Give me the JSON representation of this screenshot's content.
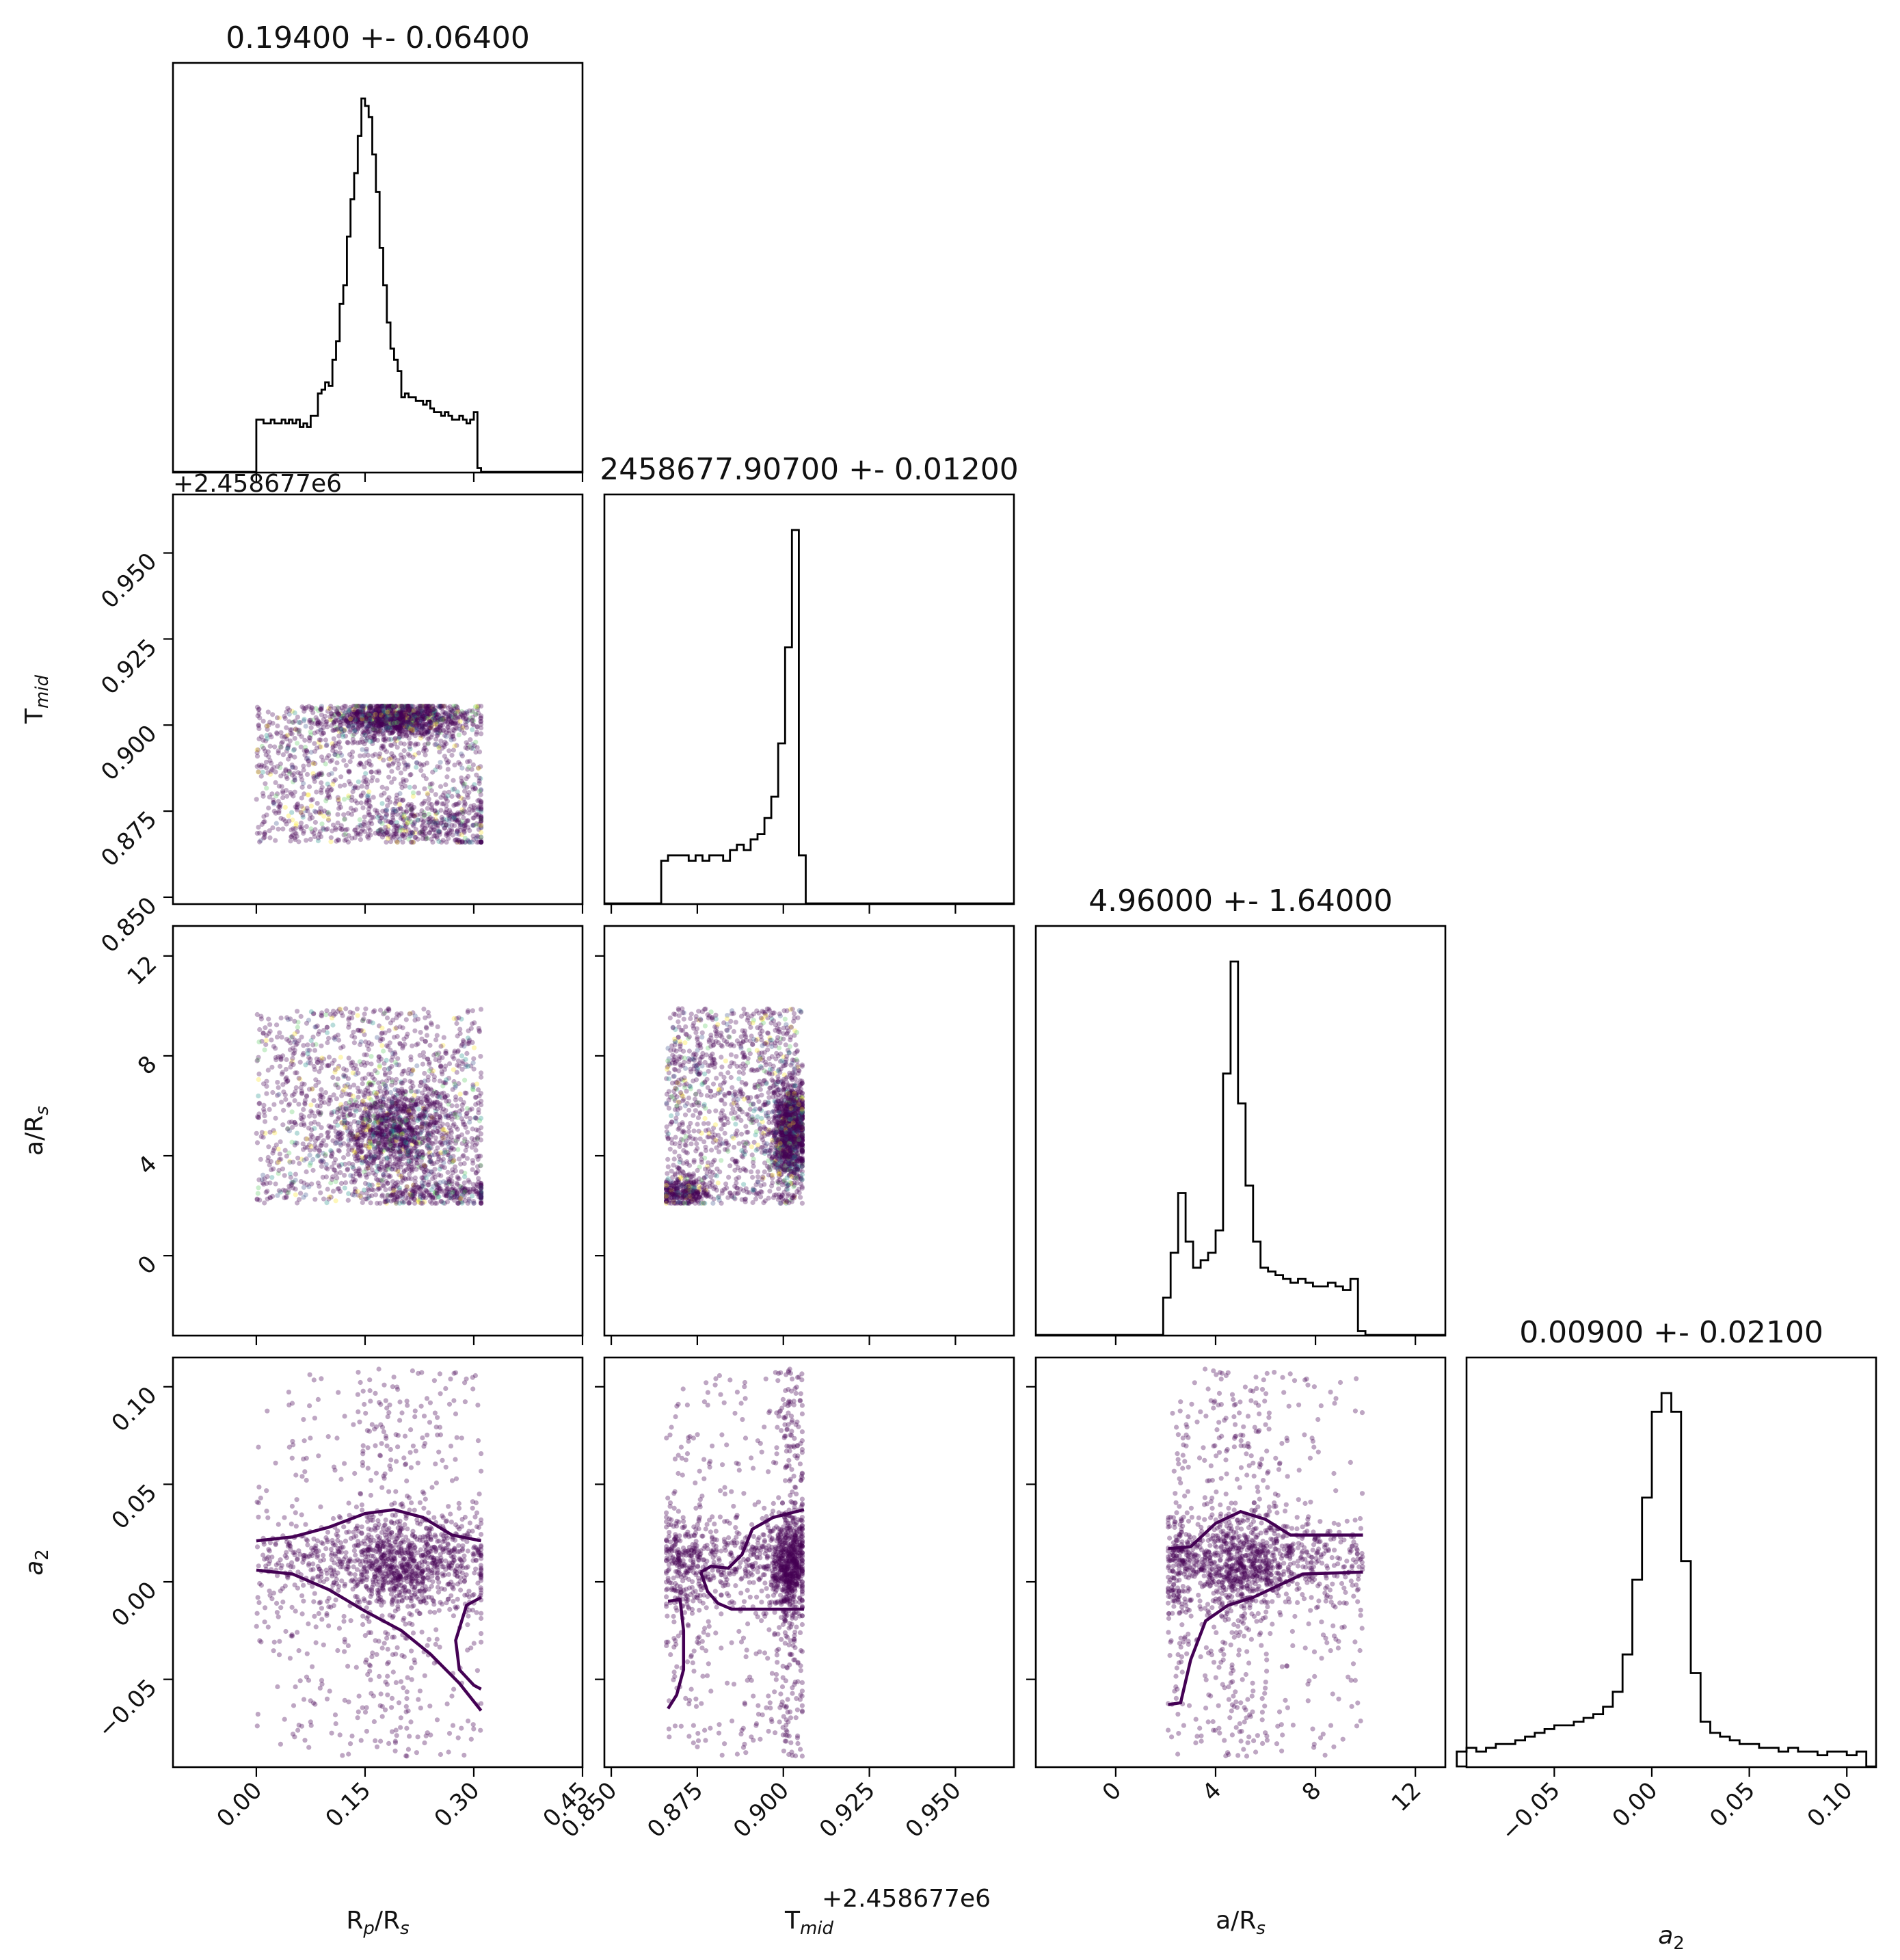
{
  "chart_data": {
    "type": "scatter",
    "kind": "corner",
    "colors": {
      "points": "#440154",
      "scatter_palette": [
        "#440154",
        "#3b528b",
        "#21918c",
        "#5ec962",
        "#fde725"
      ],
      "hist": "#000000",
      "contour": "#440154"
    },
    "parameters": [
      {
        "key": "rp",
        "label": "Rp/Rs",
        "title": "0.19400 +- 0.06400",
        "range": [
          -0.115,
          0.45
        ],
        "ticks": [
          0.0,
          0.15,
          0.3,
          0.45
        ],
        "tick_labels": [
          "0.00",
          "0.15",
          "0.30",
          "0.45"
        ]
      },
      {
        "key": "tmid",
        "label": "Tmid",
        "title": "2458677.90700 +- 0.01200",
        "offset_text": "+2.458677e6",
        "range": [
          0.848,
          0.967
        ],
        "ticks": [
          0.85,
          0.875,
          0.9,
          0.925,
          0.95
        ],
        "tick_labels": [
          "0.850",
          "0.875",
          "0.900",
          "0.925",
          "0.950"
        ]
      },
      {
        "key": "ars",
        "label": "a/Rs",
        "title": "4.96000 +- 1.64000",
        "range": [
          -3.2,
          13.2
        ],
        "ticks": [
          0,
          4,
          8,
          12
        ],
        "tick_labels": [
          "0",
          "4",
          "8",
          "12"
        ]
      },
      {
        "key": "a2",
        "label": "a2",
        "title": "0.00900 +- 0.02100",
        "range": [
          -0.095,
          0.115
        ],
        "ticks": [
          -0.05,
          0.0,
          0.05,
          0.1
        ],
        "tick_labels": [
          "−0.05",
          "0.00",
          "0.05",
          "0.10"
        ]
      }
    ],
    "histograms": {
      "rp": {
        "bins": [
          0.005,
          0.01,
          0.015,
          0.02,
          0.025,
          0.03,
          0.035,
          0.04,
          0.045,
          0.05,
          0.055,
          0.06,
          0.065,
          0.07,
          0.075,
          0.08,
          0.085,
          0.09,
          0.095,
          0.1,
          0.105,
          0.11,
          0.115,
          0.12,
          0.125,
          0.13,
          0.135,
          0.14,
          0.145,
          0.15,
          0.155,
          0.16,
          0.165,
          0.17,
          0.175,
          0.18,
          0.185,
          0.19,
          0.195,
          0.2,
          0.205,
          0.21,
          0.215,
          0.22,
          0.225,
          0.23,
          0.235,
          0.24,
          0.245,
          0.25,
          0.255,
          0.26,
          0.265,
          0.27,
          0.275,
          0.28,
          0.285,
          0.29,
          0.295,
          0.3,
          0.305,
          0.31
        ],
        "counts": [
          14,
          14,
          13,
          13,
          14,
          13,
          13,
          14,
          13,
          14,
          13,
          14,
          12,
          13,
          12,
          15,
          15,
          21,
          22,
          24,
          23,
          30,
          35,
          45,
          50,
          63,
          73,
          80,
          90,
          100,
          98,
          95,
          85,
          75,
          60,
          50,
          40,
          33,
          30,
          27,
          20,
          21,
          20,
          20,
          19,
          19,
          18,
          19,
          17,
          16,
          16,
          15,
          16,
          15,
          14,
          14,
          15,
          14,
          13,
          14,
          16,
          1
        ]
      },
      "tmid": {
        "bins": [
          0.8665,
          0.8685,
          0.8705,
          0.8725,
          0.8745,
          0.8765,
          0.8785,
          0.8805,
          0.8825,
          0.8845,
          0.8865,
          0.8885,
          0.8905,
          0.8925,
          0.8945,
          0.8965,
          0.8985,
          0.9005,
          0.9025,
          0.9045,
          0.9065
        ],
        "counts": [
          8,
          9,
          9,
          9,
          8,
          9,
          8,
          9,
          9,
          8,
          10,
          11,
          10,
          12,
          13,
          16,
          20,
          30,
          48,
          70,
          9
        ]
      },
      "ars": {
        "bins": [
          2.2,
          2.5,
          2.8,
          3.1,
          3.4,
          3.7,
          4.0,
          4.3,
          4.6,
          4.9,
          5.2,
          5.5,
          5.8,
          6.1,
          6.4,
          6.7,
          7.0,
          7.3,
          7.6,
          7.9,
          8.2,
          8.5,
          8.8,
          9.1,
          9.4,
          9.7,
          10.0
        ],
        "counts": [
          10,
          22,
          38,
          25,
          18,
          20,
          22,
          28,
          70,
          100,
          62,
          40,
          25,
          18,
          17,
          16,
          15,
          14,
          15,
          14,
          13,
          13,
          14,
          13,
          12,
          15,
          1
        ]
      },
      "a2": {
        "bins": [
          -0.095,
          -0.09,
          -0.085,
          -0.08,
          -0.075,
          -0.07,
          -0.065,
          -0.06,
          -0.055,
          -0.05,
          -0.045,
          -0.04,
          -0.035,
          -0.03,
          -0.025,
          -0.02,
          -0.015,
          -0.01,
          -0.005,
          0.0,
          0.005,
          0.01,
          0.015,
          0.02,
          0.025,
          0.03,
          0.035,
          0.04,
          0.045,
          0.05,
          0.055,
          0.06,
          0.065,
          0.07,
          0.075,
          0.08,
          0.085,
          0.09,
          0.095,
          0.1,
          0.105,
          0.11
        ],
        "counts": [
          4,
          5,
          4,
          5,
          6,
          6,
          7,
          8,
          9,
          10,
          11,
          11,
          12,
          13,
          14,
          16,
          20,
          30,
          50,
          72,
          95,
          100,
          95,
          55,
          25,
          12,
          9,
          8,
          7,
          6,
          6,
          5,
          5,
          4,
          5,
          4,
          4,
          3,
          4,
          4,
          3,
          4
        ]
      }
    },
    "scatter_points": [
      {
        "pair": [
          "tmid",
          "rp"
        ],
        "count": 2600,
        "approx_mean": [
          0.19,
          0.893
        ]
      },
      {
        "pair": [
          "ars",
          "rp"
        ],
        "count": 2600,
        "approx_mean": [
          0.19,
          5.2
        ]
      },
      {
        "pair": [
          "ars",
          "tmid"
        ],
        "count": 2600,
        "approx_mean": [
          0.898,
          5.2
        ]
      },
      {
        "pair": [
          "a2",
          "rp"
        ],
        "count": 1600,
        "approx_mean": [
          0.19,
          0.009
        ]
      },
      {
        "pair": [
          "a2",
          "tmid"
        ],
        "count": 1600,
        "approx_mean": [
          0.898,
          0.009
        ]
      },
      {
        "pair": [
          "a2",
          "ars"
        ],
        "count": 1600,
        "approx_mean": [
          5.0,
          0.009
        ]
      }
    ]
  }
}
